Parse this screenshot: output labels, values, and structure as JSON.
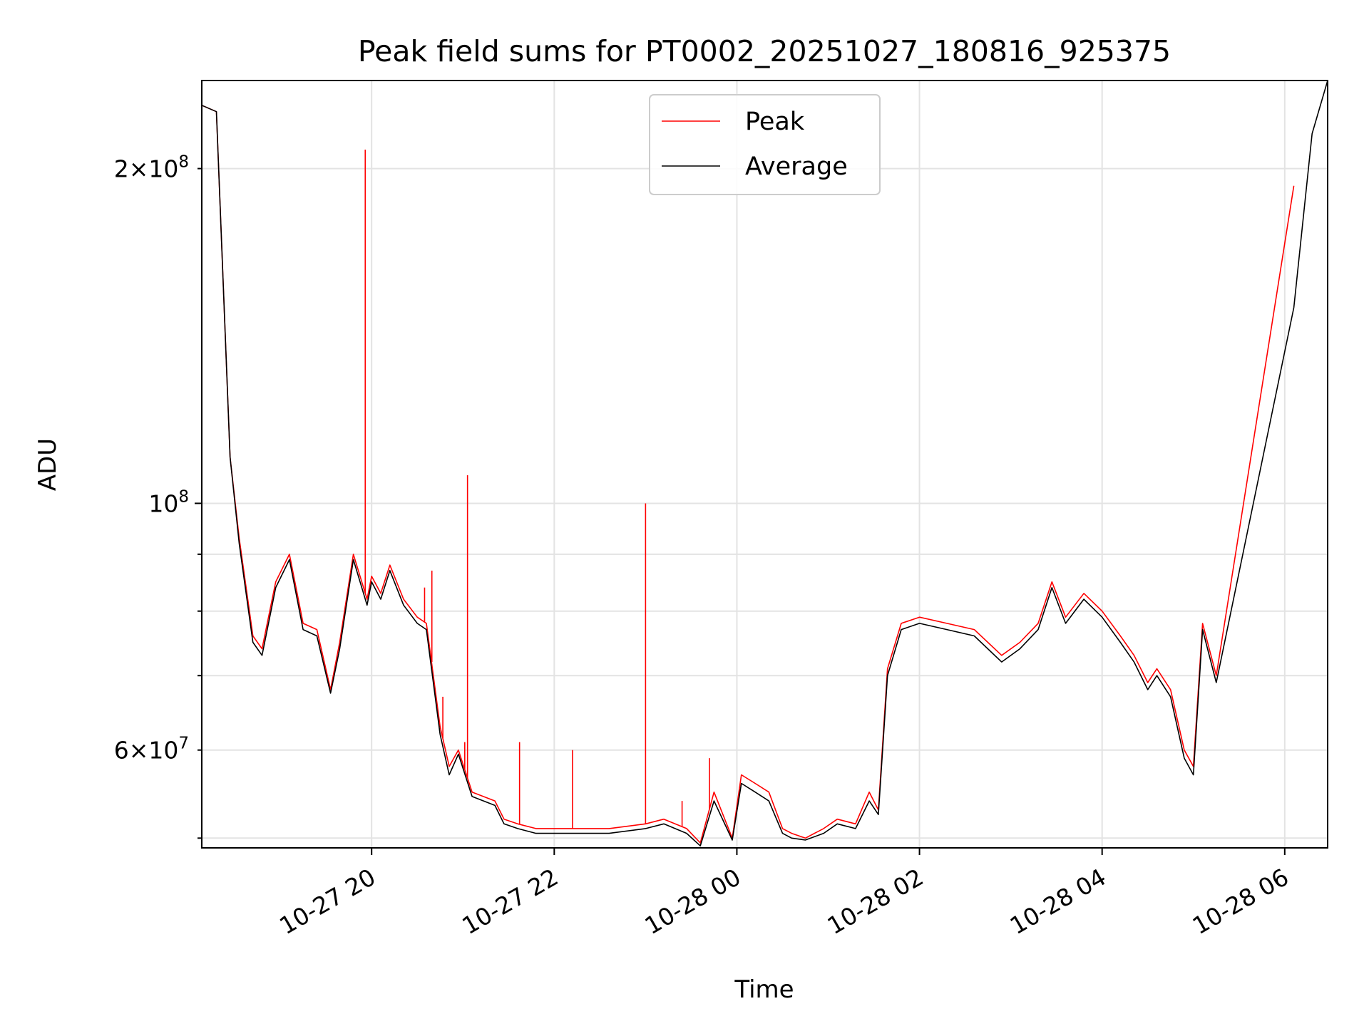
{
  "chart_data": {
    "type": "line",
    "title": "Peak field sums for PT0002_20251027_180816_925375",
    "xlabel": "Time",
    "ylabel": "ADU",
    "yscale": "log",
    "xlim_hours_since_10_27_1800": [
      0.14,
      12.47
    ],
    "ylim": [
      49000000,
      240000000
    ],
    "x_ticks": [
      {
        "hours": 2,
        "label": "10-27 20"
      },
      {
        "hours": 4,
        "label": "10-27 22"
      },
      {
        "hours": 6,
        "label": "10-28 00"
      },
      {
        "hours": 8,
        "label": "10-28 02"
      },
      {
        "hours": 10,
        "label": "10-28 04"
      },
      {
        "hours": 12,
        "label": "10-28 06"
      }
    ],
    "y_ticks_major": [
      {
        "value": 100000000,
        "base": "10",
        "exp": "8"
      }
    ],
    "y_ticks_minor": [
      {
        "value": 60000000,
        "mant": "6",
        "base": "10",
        "exp": "7"
      },
      {
        "value": 200000000,
        "mant": "2",
        "base": "10",
        "exp": "8"
      }
    ],
    "y_minor_unlabeled": [
      50000000,
      70000000,
      80000000,
      90000000
    ],
    "legend": {
      "position": "top-center"
    },
    "grid": true,
    "series": [
      {
        "name": "Peak",
        "color": "#ff0000",
        "x_hours": [
          0.14,
          0.3,
          0.45,
          0.55,
          0.7,
          0.8,
          0.95,
          1.1,
          1.25,
          1.4,
          1.55,
          1.65,
          1.8,
          1.95,
          2.0,
          2.1,
          2.2,
          2.35,
          2.5,
          2.6,
          2.75,
          2.85,
          2.95,
          3.1,
          3.35,
          3.45,
          3.6,
          3.8,
          4.0,
          4.3,
          4.6,
          5.0,
          5.2,
          5.45,
          5.6,
          5.75,
          5.95,
          6.05,
          6.2,
          6.35,
          6.5,
          6.6,
          6.75,
          6.95,
          7.1,
          7.3,
          7.45,
          7.55,
          7.65,
          7.8,
          8.0,
          8.3,
          8.6,
          8.9,
          9.1,
          9.3,
          9.45,
          9.6,
          9.8,
          10.0,
          10.2,
          10.35,
          10.5,
          10.6,
          10.75,
          10.9,
          11.0,
          11.1,
          11.25,
          12.1
        ],
        "values": [
          228000000,
          225000000,
          110000000,
          93000000,
          76000000,
          74000000,
          85000000,
          90000000,
          78000000,
          77000000,
          68000000,
          75000000,
          90000000,
          82000000,
          86000000,
          83000000,
          88000000,
          82000000,
          79000000,
          78000000,
          63000000,
          58000000,
          60000000,
          55000000,
          54000000,
          52000000,
          51500000,
          51000000,
          51000000,
          51000000,
          51000000,
          51500000,
          52000000,
          51000000,
          49500000,
          55000000,
          50000000,
          57000000,
          56000000,
          55000000,
          51000000,
          50500000,
          50000000,
          51000000,
          52000000,
          51500000,
          55000000,
          53000000,
          71000000,
          78000000,
          79000000,
          78000000,
          77000000,
          73000000,
          75000000,
          78000000,
          85000000,
          79000000,
          83000000,
          80000000,
          76000000,
          73000000,
          69000000,
          71000000,
          68000000,
          60000000,
          58000000,
          78000000,
          70000000,
          193000000
        ]
      },
      {
        "name": "Average",
        "color": "#000000",
        "x_hours": [
          0.14,
          0.3,
          0.45,
          0.55,
          0.7,
          0.8,
          0.95,
          1.1,
          1.25,
          1.4,
          1.55,
          1.65,
          1.8,
          1.95,
          2.0,
          2.1,
          2.2,
          2.35,
          2.5,
          2.6,
          2.75,
          2.85,
          2.95,
          3.1,
          3.35,
          3.45,
          3.6,
          3.8,
          4.0,
          4.3,
          4.6,
          5.0,
          5.2,
          5.45,
          5.6,
          5.75,
          5.95,
          6.05,
          6.2,
          6.35,
          6.5,
          6.6,
          6.75,
          6.95,
          7.1,
          7.3,
          7.45,
          7.55,
          7.65,
          7.8,
          8.0,
          8.3,
          8.6,
          8.9,
          9.1,
          9.3,
          9.45,
          9.6,
          9.8,
          10.0,
          10.2,
          10.35,
          10.5,
          10.6,
          10.75,
          10.9,
          11.0,
          11.1,
          11.25,
          12.1,
          12.3,
          12.47
        ],
        "values": [
          228000000,
          225000000,
          110000000,
          92000000,
          75000000,
          73000000,
          84000000,
          89000000,
          77000000,
          76000000,
          67500000,
          74000000,
          89000000,
          81000000,
          85000000,
          82000000,
          87000000,
          81000000,
          78000000,
          77000000,
          62000000,
          57000000,
          59500000,
          54500000,
          53500000,
          51500000,
          51000000,
          50500000,
          50500000,
          50500000,
          50500000,
          51000000,
          51500000,
          50500000,
          49200000,
          54000000,
          49800000,
          56000000,
          55000000,
          54000000,
          50500000,
          50000000,
          49800000,
          50500000,
          51500000,
          51000000,
          54000000,
          52500000,
          70000000,
          77000000,
          78000000,
          77000000,
          76000000,
          72000000,
          74000000,
          77000000,
          84000000,
          78000000,
          82000000,
          79000000,
          75000000,
          72000000,
          68000000,
          70000000,
          67000000,
          59000000,
          57000000,
          77000000,
          69000000,
          150000000,
          215000000,
          240000000
        ]
      }
    ],
    "spikes": {
      "color": "#ff0000",
      "x_hours": [
        1.93,
        2.58,
        2.66,
        2.78,
        3.02,
        3.05,
        3.62,
        4.2,
        5.0,
        5.4,
        5.7
      ],
      "peak_values": [
        208000000,
        84000000,
        87000000,
        67000000,
        61000000,
        106000000,
        61000000,
        60000000,
        100000000,
        54000000,
        59000000
      ]
    }
  }
}
